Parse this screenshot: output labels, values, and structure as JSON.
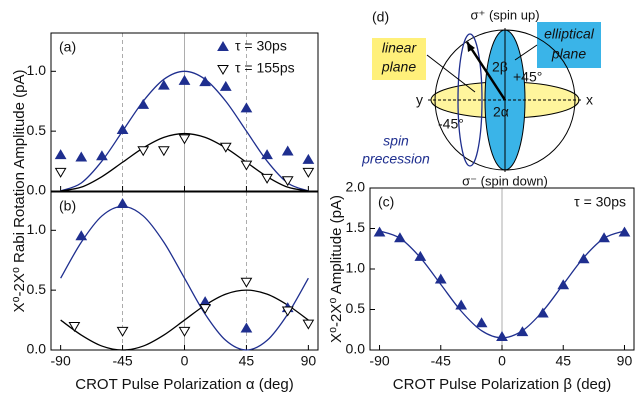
{
  "chart_data": [
    {
      "type": "scatter",
      "panel": "(a)",
      "xlim": [
        -97,
        97
      ],
      "xticks": [
        -90,
        -45,
        0,
        45,
        90
      ],
      "xtick_labels": false,
      "ylim": [
        0,
        1.32
      ],
      "yticks": [
        {
          "value": 0,
          "label": "0.0"
        },
        {
          "value": 0.5,
          "label": "0.5"
        },
        {
          "value": 1,
          "label": "1.0"
        }
      ],
      "ylabel": "X⁰-2X⁰ Rabi Rotation Amplitude (pA)",
      "legend": "upper right",
      "ref_lines": [
        {
          "x": -45,
          "style": "dashed"
        },
        {
          "x": 0,
          "style": "solid"
        },
        {
          "x": 45,
          "style": "dashed"
        }
      ],
      "series": [
        {
          "name": "τ = 30ps",
          "marker": "filled-triangle",
          "color": "#1f2f8f",
          "x": [
            -90,
            -75,
            -60,
            -45,
            -30,
            -15,
            0,
            15,
            30,
            45,
            60,
            75,
            90
          ],
          "values": [
            0.3,
            0.28,
            0.29,
            0.51,
            0.72,
            0.88,
            0.92,
            0.91,
            0.87,
            0.69,
            0.3,
            0.33,
            0.26
          ]
        },
        {
          "name": "τ = 155ps",
          "marker": "open-triangle",
          "color": "#000000",
          "x": [
            -90,
            -30,
            -15,
            0,
            30,
            45,
            60,
            75,
            90
          ],
          "values": [
            0.16,
            0.34,
            0.34,
            0.44,
            0.37,
            0.22,
            0.11,
            0.09,
            0.16
          ]
        },
        {
          "marker": "line",
          "color": "#1f2f8f",
          "x": [
            -90,
            -75,
            -60,
            -45,
            -30,
            -15,
            0,
            15,
            30,
            45,
            60,
            75,
            90
          ],
          "values": [
            0,
            0.067,
            0.25,
            0.5,
            0.75,
            0.933,
            1,
            0.933,
            0.75,
            0.5,
            0.25,
            0.067,
            0
          ]
        },
        {
          "marker": "line",
          "color": "#000000",
          "x": [
            -90,
            -75,
            -60,
            -45,
            -30,
            -15,
            0,
            15,
            30,
            45,
            60,
            75,
            90
          ],
          "values": [
            0,
            0.032,
            0.12,
            0.24,
            0.36,
            0.448,
            0.48,
            0.448,
            0.36,
            0.24,
            0.12,
            0.032,
            0
          ]
        }
      ]
    },
    {
      "type": "scatter",
      "panel": "(b)",
      "xlim": [
        -97,
        97
      ],
      "xticks": [
        -90,
        -45,
        0,
        45,
        90
      ],
      "xtick_labels": true,
      "ylim": [
        0,
        1.32
      ],
      "yticks": [
        {
          "value": 0,
          "label": "0.0"
        },
        {
          "value": 0.5,
          "label": "0.5"
        },
        {
          "value": 1,
          "label": "1.0"
        }
      ],
      "xlabel": "CROT Pulse Polarization α (deg)",
      "ref_lines": [
        {
          "x": -45,
          "style": "dashed"
        },
        {
          "x": 0,
          "style": "solid"
        },
        {
          "x": 45,
          "style": "dashed"
        }
      ],
      "series": [
        {
          "marker": "filled-triangle",
          "color": "#1f2f8f",
          "x": [
            -75,
            -45,
            15,
            45,
            75
          ],
          "values": [
            0.95,
            1.22,
            0.4,
            0.18,
            0.35
          ]
        },
        {
          "marker": "open-triangle",
          "color": "#000000",
          "x": [
            -80,
            -45,
            0,
            15,
            45,
            75,
            90
          ],
          "values": [
            0.2,
            0.16,
            0.16,
            0.35,
            0.57,
            0.33,
            0.22
          ]
        },
        {
          "marker": "line",
          "color": "#1f2f8f",
          "x": [
            -90,
            -75,
            -60,
            -45,
            -30,
            -15,
            0,
            15,
            30,
            45,
            60,
            75,
            90
          ],
          "values": [
            0.6,
            0.9,
            1.12,
            1.2,
            1.12,
            0.9,
            0.6,
            0.3,
            0.08,
            0,
            0.08,
            0.3,
            0.6
          ]
        },
        {
          "marker": "line",
          "color": "#000000",
          "x": [
            -90,
            -75,
            -60,
            -45,
            -30,
            -15,
            0,
            15,
            30,
            45,
            60,
            75,
            90
          ],
          "values": [
            0.25,
            0.125,
            0.033,
            0,
            0.033,
            0.125,
            0.25,
            0.375,
            0.467,
            0.5,
            0.467,
            0.375,
            0.25
          ]
        }
      ]
    },
    {
      "type": "scatter",
      "panel": "(c)",
      "xlim": [
        -97,
        97
      ],
      "xticks": [
        -90,
        -45,
        0,
        45,
        90
      ],
      "xtick_labels": true,
      "ylim": [
        0,
        2
      ],
      "yticks": [
        {
          "value": 0,
          "label": "0.0"
        },
        {
          "value": 0.5,
          "label": "0.5"
        },
        {
          "value": 1,
          "label": "1.0"
        },
        {
          "value": 1.5,
          "label": "1.5"
        },
        {
          "value": 2,
          "label": "2.0"
        }
      ],
      "xlabel": "CROT Pulse Polarization β (deg)",
      "ylabel": "X⁰-2X⁰ Amplitude (pA)",
      "annotation": "τ = 30ps",
      "ref_lines": [
        {
          "x": 0,
          "style": "solid"
        }
      ],
      "series": [
        {
          "marker": "filled-triangle",
          "color": "#1f2f8f",
          "x": [
            -90,
            -75,
            -60,
            -45,
            -30,
            -15,
            0,
            15,
            30,
            45,
            60,
            75,
            90
          ],
          "values": [
            1.45,
            1.38,
            1.15,
            0.87,
            0.55,
            0.33,
            0.16,
            0.22,
            0.45,
            0.8,
            1.12,
            1.38,
            1.45
          ]
        },
        {
          "marker": "line",
          "color": "#1f2f8f",
          "x": [
            -90,
            -75,
            -60,
            -45,
            -30,
            -15,
            0,
            15,
            30,
            45,
            60,
            75,
            90
          ],
          "values": [
            1.47,
            1.38,
            1.14,
            0.81,
            0.48,
            0.238,
            0.15,
            0.238,
            0.48,
            0.81,
            1.14,
            1.38,
            1.47
          ]
        }
      ]
    }
  ],
  "diagram": {
    "label": "(d)",
    "top": "σ⁺ (spin up)",
    "bottom": "σ⁻ (spin down)",
    "linear_plane": [
      "linear",
      "plane"
    ],
    "elliptical_plane": [
      "elliptical",
      "plane"
    ],
    "spin_precession": [
      "spin",
      "precession"
    ],
    "angle_beta": "2β",
    "angle_alpha": "2α",
    "plus45": "+45°",
    "minus45": "-45°",
    "y_axis": "y",
    "x_axis": "x"
  }
}
